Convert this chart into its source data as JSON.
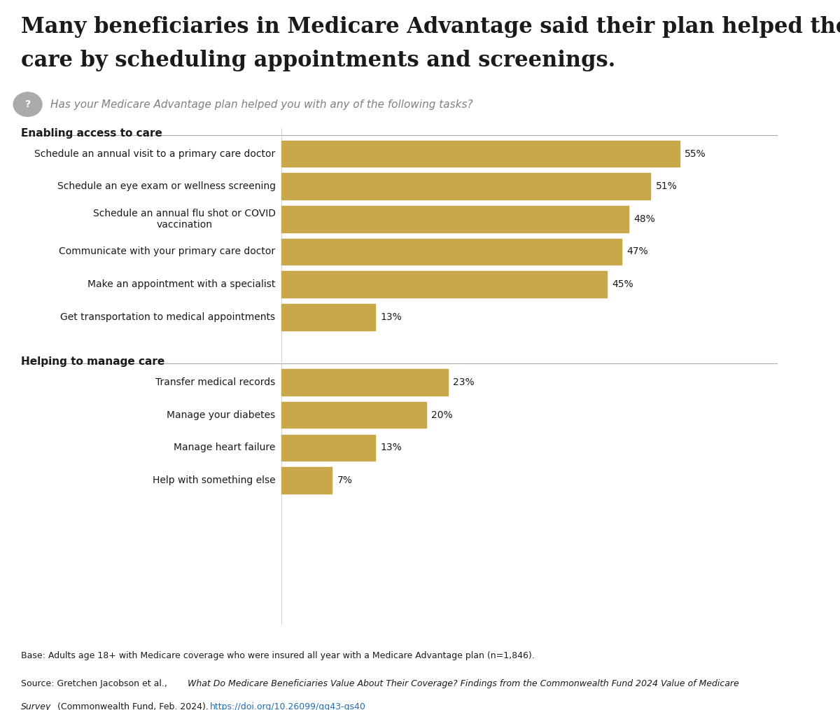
{
  "title_line1": "Many beneficiaries in Medicare Advantage said their plan helped them access",
  "title_line2": "care by scheduling appointments and screenings.",
  "subtitle": "Has your Medicare Advantage plan helped you with any of the following tasks?",
  "section1_label": "Enabling access to care",
  "section2_label": "Helping to manage care",
  "section1_bars": [
    {
      "label": "Schedule an annual visit to a primary care doctor",
      "value": 55
    },
    {
      "label": "Schedule an eye exam or wellness screening",
      "value": 51
    },
    {
      "label": "Schedule an annual flu shot or COVID\nvaccination",
      "value": 48
    },
    {
      "label": "Communicate with your primary care doctor",
      "value": 47
    },
    {
      "label": "Make an appointment with a specialist",
      "value": 45
    },
    {
      "label": "Get transportation to medical appointments",
      "value": 13
    }
  ],
  "section2_bars": [
    {
      "label": "Transfer medical records",
      "value": 23
    },
    {
      "label": "Manage your diabetes",
      "value": 20
    },
    {
      "label": "Manage heart failure",
      "value": 13
    },
    {
      "label": "Help with something else",
      "value": 7
    }
  ],
  "bar_color": "#C9A84C",
  "xlim_max": 65,
  "background_color": "#FFFFFF",
  "text_color": "#1a1a1a",
  "subtitle_color": "#808080",
  "line_color": "#aaaaaa",
  "footnote1": "Base: Adults age 18+ with Medicare coverage who were insured all year with a Medicare Advantage plan (n=1,846).",
  "footnote2_url": "https://doi.org/10.26099/gq43-qs40",
  "url_color": "#1e6eb5"
}
